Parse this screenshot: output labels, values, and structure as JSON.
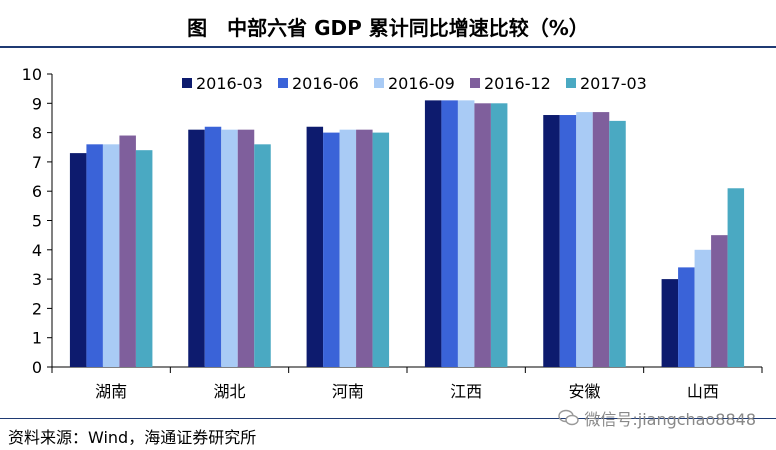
{
  "title": "图　中部六省 GDP 累计同比增速比较（%）",
  "source": "资料来源：Wind，海通证券研究所",
  "watermark": "微信号:jiangchao8848",
  "chart_data": {
    "type": "bar",
    "categories": [
      "湖南",
      "湖北",
      "河南",
      "江西",
      "安徽",
      "山西"
    ],
    "ylim": [
      0,
      10
    ],
    "yticks": [
      0,
      1,
      2,
      3,
      4,
      5,
      6,
      7,
      8,
      9,
      10
    ],
    "legend_position": "top",
    "series": [
      {
        "name": "2016-03",
        "color": "#0d1b6e",
        "values": [
          7.3,
          8.1,
          8.2,
          9.1,
          8.6,
          3.0
        ]
      },
      {
        "name": "2016-06",
        "color": "#3a63d8",
        "values": [
          7.6,
          8.2,
          8.0,
          9.1,
          8.6,
          3.4
        ]
      },
      {
        "name": "2016-09",
        "color": "#a9cbf5",
        "values": [
          7.6,
          8.1,
          8.1,
          9.1,
          8.7,
          4.0
        ]
      },
      {
        "name": "2016-12",
        "color": "#7f5f9c",
        "values": [
          7.9,
          8.1,
          8.1,
          9.0,
          8.7,
          4.5
        ]
      },
      {
        "name": "2017-03",
        "color": "#4aa9c2",
        "values": [
          7.4,
          7.6,
          8.0,
          9.0,
          8.4,
          6.1
        ]
      }
    ]
  }
}
